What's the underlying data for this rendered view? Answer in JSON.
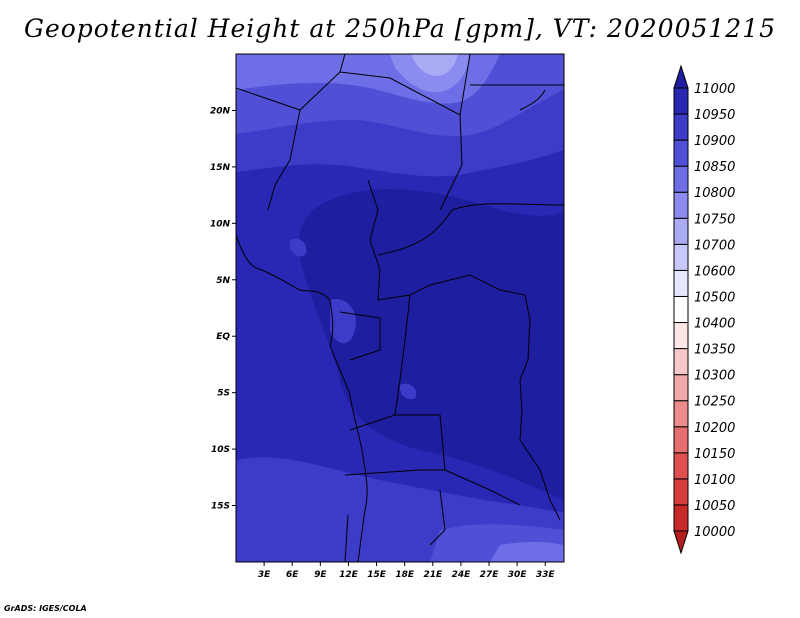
{
  "title": "Geopotential Height at 250hPa [gpm], VT: 2020051215",
  "footer": "GrADS: IGES/COLA",
  "map": {
    "lon_range": [
      0,
      35
    ],
    "lat_range": [
      -20,
      25
    ],
    "lat_ticks": [
      {
        "value": 20,
        "label": "20N"
      },
      {
        "value": 15,
        "label": "15N"
      },
      {
        "value": 10,
        "label": "10N"
      },
      {
        "value": 5,
        "label": "5N"
      },
      {
        "value": 0,
        "label": "EQ"
      },
      {
        "value": -5,
        "label": "5S"
      },
      {
        "value": -10,
        "label": "10S"
      },
      {
        "value": -15,
        "label": "15S"
      }
    ],
    "lon_ticks": [
      {
        "value": 3,
        "label": "3E"
      },
      {
        "value": 6,
        "label": "6E"
      },
      {
        "value": 9,
        "label": "9E"
      },
      {
        "value": 12,
        "label": "12E"
      },
      {
        "value": 15,
        "label": "15E"
      },
      {
        "value": 18,
        "label": "18E"
      },
      {
        "value": 21,
        "label": "21E"
      },
      {
        "value": 24,
        "label": "24E"
      },
      {
        "value": 27,
        "label": "27E"
      },
      {
        "value": 30,
        "label": "30E"
      },
      {
        "value": 33,
        "label": "33E"
      }
    ]
  },
  "colorbar": {
    "levels": [
      "10000",
      "10050",
      "10100",
      "10150",
      "10200",
      "10250",
      "10300",
      "10350",
      "10400",
      "10500",
      "10600",
      "10700",
      "10750",
      "10800",
      "10850",
      "10900",
      "10950",
      "11000"
    ],
    "colors": [
      "#b41e1e",
      "#c82828",
      "#d73c3c",
      "#e05050",
      "#e66e6e",
      "#ec8c8c",
      "#f2aaaa",
      "#f7c8c8",
      "#fce6e6",
      "#ffffff",
      "#e6e6ff",
      "#c8c8fa",
      "#aaaaf5",
      "#8c8cf0",
      "#6e6ee6",
      "#5050d7",
      "#3c3cc8",
      "#2828b4",
      "#1e1ea0"
    ]
  }
}
